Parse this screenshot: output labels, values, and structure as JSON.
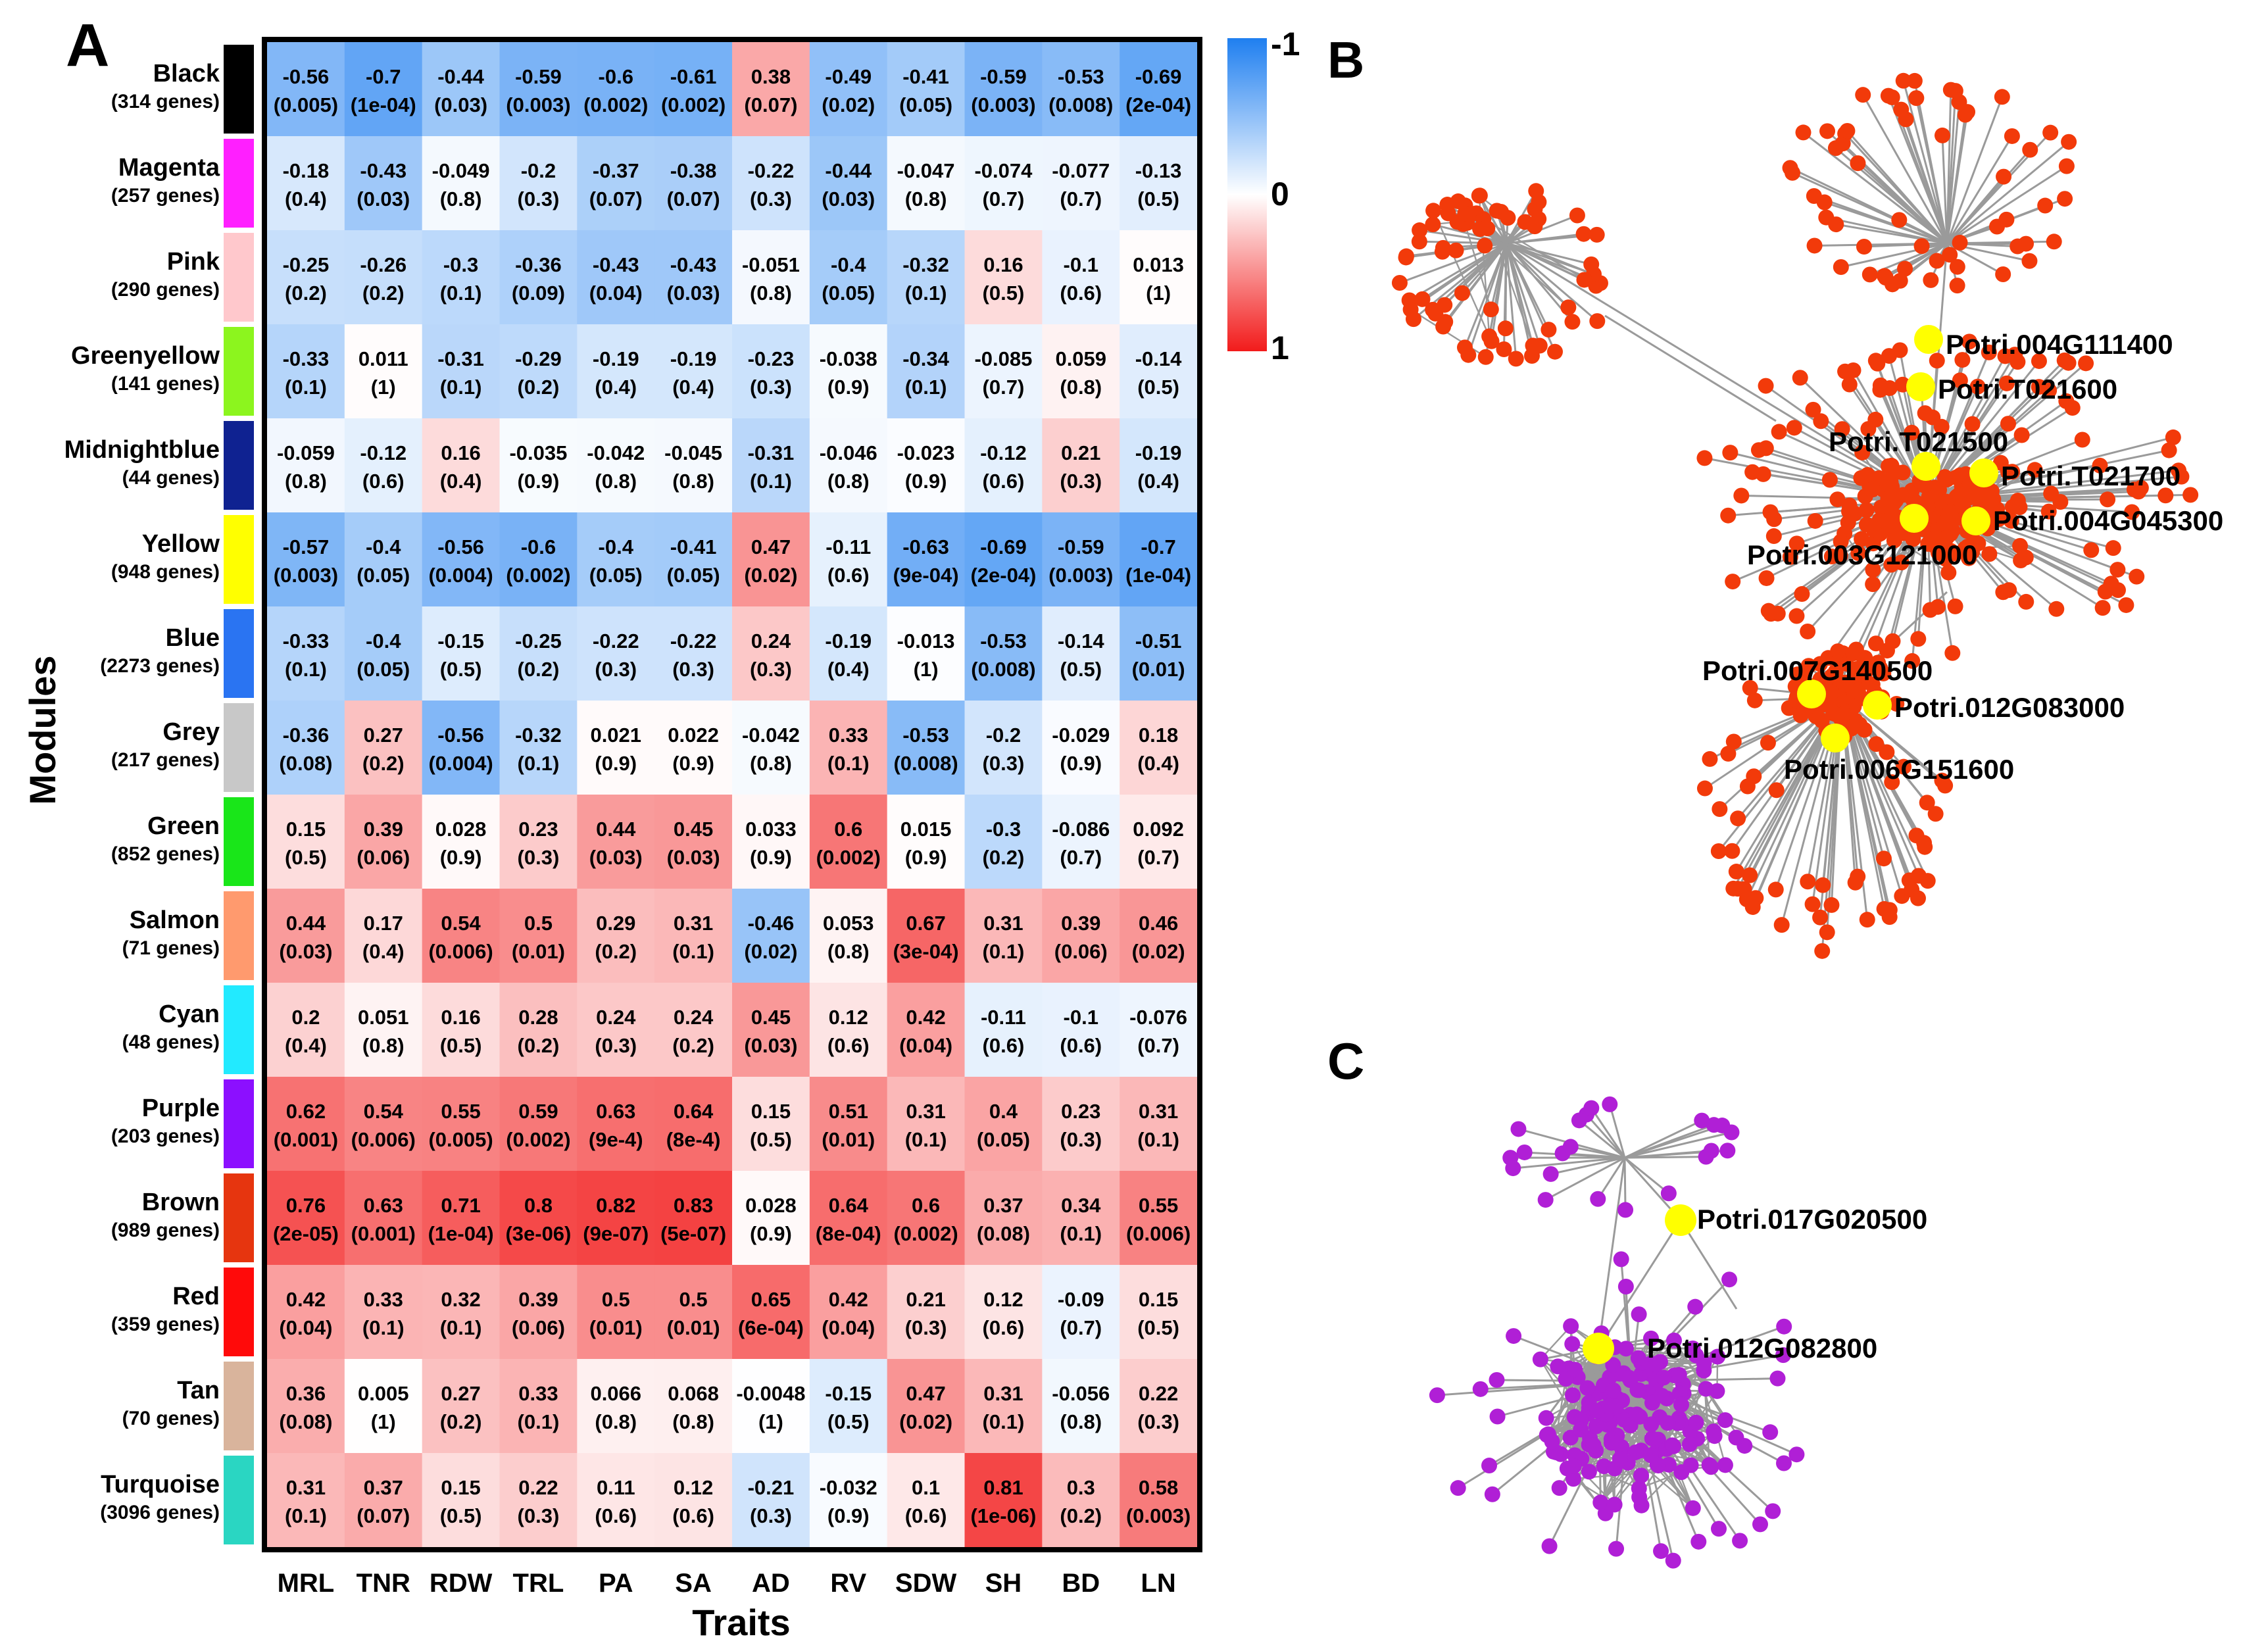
{
  "panels": {
    "a": {
      "letter": "A"
    },
    "b": {
      "letter": "B"
    },
    "c": {
      "letter": "C"
    }
  },
  "chart_data": {
    "type": "heatmap",
    "title": "",
    "xlabel": "Traits",
    "ylabel": "Modules",
    "traits": [
      "MRL",
      "TNR",
      "RDW",
      "TRL",
      "PA",
      "SA",
      "AD",
      "RV",
      "SDW",
      "SH",
      "BD",
      "LN"
    ],
    "colorbar": {
      "min": -1,
      "mid": 0,
      "max": 1,
      "min_label": "-1",
      "mid_label": "0",
      "max_label": "1",
      "low_color": "#1f7ff0",
      "mid_color": "#ffffff",
      "high_color": "#f21b1b"
    },
    "modules": [
      {
        "name": "Black",
        "genes": "(314 genes)",
        "color": "#000000",
        "r": [
          "-0.56",
          "-0.7",
          "-0.44",
          "-0.59",
          "-0.6",
          "-0.61",
          "0.38",
          "-0.49",
          "-0.41",
          "-0.59",
          "-0.53",
          "-0.69"
        ],
        "p": [
          "(0.005)",
          "(1e-04)",
          "(0.03)",
          "(0.003)",
          "(0.002)",
          "(0.002)",
          "(0.07)",
          "(0.02)",
          "(0.05)",
          "(0.003)",
          "(0.008)",
          "(2e-04)"
        ]
      },
      {
        "name": "Magenta",
        "genes": "(257 genes)",
        "color": "#ff1fff",
        "r": [
          "-0.18",
          "-0.43",
          "-0.049",
          "-0.2",
          "-0.37",
          "-0.38",
          "-0.22",
          "-0.44",
          "-0.047",
          "-0.074",
          "-0.077",
          "-0.13"
        ],
        "p": [
          "(0.4)",
          "(0.03)",
          "(0.8)",
          "(0.3)",
          "(0.07)",
          "(0.07)",
          "(0.3)",
          "(0.03)",
          "(0.8)",
          "(0.7)",
          "(0.7)",
          "(0.5)"
        ]
      },
      {
        "name": "Pink",
        "genes": "(290 genes)",
        "color": "#ffc8cc",
        "r": [
          "-0.25",
          "-0.26",
          "-0.3",
          "-0.36",
          "-0.43",
          "-0.43",
          "-0.051",
          "-0.4",
          "-0.32",
          "0.16",
          "-0.1",
          "0.013"
        ],
        "p": [
          "(0.2)",
          "(0.2)",
          "(0.1)",
          "(0.09)",
          "(0.04)",
          "(0.03)",
          "(0.8)",
          "(0.05)",
          "(0.1)",
          "(0.5)",
          "(0.6)",
          "(1)"
        ]
      },
      {
        "name": "Greenyellow",
        "genes": "(141 genes)",
        "color": "#8cf51e",
        "r": [
          "-0.33",
          "0.011",
          "-0.31",
          "-0.29",
          "-0.19",
          "-0.19",
          "-0.23",
          "-0.038",
          "-0.34",
          "-0.085",
          "0.059",
          "-0.14"
        ],
        "p": [
          "(0.1)",
          "(1)",
          "(0.1)",
          "(0.2)",
          "(0.4)",
          "(0.4)",
          "(0.3)",
          "(0.9)",
          "(0.1)",
          "(0.7)",
          "(0.8)",
          "(0.5)"
        ]
      },
      {
        "name": "Midnightblue",
        "genes": "(44 genes)",
        "color": "#0f2291",
        "r": [
          "-0.059",
          "-0.12",
          "0.16",
          "-0.035",
          "-0.042",
          "-0.045",
          "-0.31",
          "-0.046",
          "-0.023",
          "-0.12",
          "0.21",
          "-0.19"
        ],
        "p": [
          "(0.8)",
          "(0.6)",
          "(0.4)",
          "(0.9)",
          "(0.8)",
          "(0.8)",
          "(0.1)",
          "(0.8)",
          "(0.9)",
          "(0.6)",
          "(0.3)",
          "(0.4)"
        ]
      },
      {
        "name": "Yellow",
        "genes": "(948 genes)",
        "color": "#ffff00",
        "r": [
          "-0.57",
          "-0.4",
          "-0.56",
          "-0.6",
          "-0.4",
          "-0.41",
          "0.47",
          "-0.11",
          "-0.63",
          "-0.69",
          "-0.59",
          "-0.7"
        ],
        "p": [
          "(0.003)",
          "(0.05)",
          "(0.004)",
          "(0.002)",
          "(0.05)",
          "(0.05)",
          "(0.02)",
          "(0.6)",
          "(9e-04)",
          "(2e-04)",
          "(0.003)",
          "(1e-04)"
        ]
      },
      {
        "name": "Blue",
        "genes": "(2273 genes)",
        "color": "#2a74f2",
        "r": [
          "-0.33",
          "-0.4",
          "-0.15",
          "-0.25",
          "-0.22",
          "-0.22",
          "0.24",
          "-0.19",
          "-0.013",
          "-0.53",
          "-0.14",
          "-0.51"
        ],
        "p": [
          "(0.1)",
          "(0.05)",
          "(0.5)",
          "(0.2)",
          "(0.3)",
          "(0.3)",
          "(0.3)",
          "(0.4)",
          "(1)",
          "(0.008)",
          "(0.5)",
          "(0.01)"
        ]
      },
      {
        "name": "Grey",
        "genes": "(217 genes)",
        "color": "#c8c8c8",
        "r": [
          "-0.36",
          "0.27",
          "-0.56",
          "-0.32",
          "0.021",
          "0.022",
          "-0.042",
          "0.33",
          "-0.53",
          "-0.2",
          "-0.029",
          "0.18"
        ],
        "p": [
          "(0.08)",
          "(0.2)",
          "(0.004)",
          "(0.1)",
          "(0.9)",
          "(0.9)",
          "(0.8)",
          "(0.1)",
          "(0.008)",
          "(0.3)",
          "(0.9)",
          "(0.4)"
        ]
      },
      {
        "name": "Green",
        "genes": "(852 genes)",
        "color": "#19e619",
        "r": [
          "0.15",
          "0.39",
          "0.028",
          "0.23",
          "0.44",
          "0.45",
          "0.033",
          "0.6",
          "0.015",
          "-0.3",
          "-0.086",
          "0.092"
        ],
        "p": [
          "(0.5)",
          "(0.06)",
          "(0.9)",
          "(0.3)",
          "(0.03)",
          "(0.03)",
          "(0.9)",
          "(0.002)",
          "(0.9)",
          "(0.2)",
          "(0.7)",
          "(0.7)"
        ]
      },
      {
        "name": "Salmon",
        "genes": "(71 genes)",
        "color": "#ff9a6e",
        "r": [
          "0.44",
          "0.17",
          "0.54",
          "0.5",
          "0.29",
          "0.31",
          "-0.46",
          "0.053",
          "0.67",
          "0.31",
          "0.39",
          "0.46"
        ],
        "p": [
          "(0.03)",
          "(0.4)",
          "(0.006)",
          "(0.01)",
          "(0.2)",
          "(0.1)",
          "(0.02)",
          "(0.8)",
          "(3e-04)",
          "(0.1)",
          "(0.06)",
          "(0.02)"
        ]
      },
      {
        "name": "Cyan",
        "genes": "(48 genes)",
        "color": "#22eaff",
        "r": [
          "0.2",
          "0.051",
          "0.16",
          "0.28",
          "0.24",
          "0.24",
          "0.45",
          "0.12",
          "0.42",
          "-0.11",
          "-0.1",
          "-0.076"
        ],
        "p": [
          "(0.4)",
          "(0.8)",
          "(0.5)",
          "(0.2)",
          "(0.3)",
          "(0.2)",
          "(0.03)",
          "(0.6)",
          "(0.04)",
          "(0.6)",
          "(0.6)",
          "(0.7)"
        ]
      },
      {
        "name": "Purple",
        "genes": "(203 genes)",
        "color": "#8c0fff",
        "r": [
          "0.62",
          "0.54",
          "0.55",
          "0.59",
          "0.63",
          "0.64",
          "0.15",
          "0.51",
          "0.31",
          "0.4",
          "0.23",
          "0.31"
        ],
        "p": [
          "(0.001)",
          "(0.006)",
          "(0.005)",
          "(0.002)",
          "(9e-4)",
          "(8e-4)",
          "(0.5)",
          "(0.01)",
          "(0.1)",
          "(0.05)",
          "(0.3)",
          "(0.1)"
        ]
      },
      {
        "name": "Brown",
        "genes": "(989 genes)",
        "color": "#e6350f",
        "r": [
          "0.76",
          "0.63",
          "0.71",
          "0.8",
          "0.82",
          "0.83",
          "0.028",
          "0.64",
          "0.6",
          "0.37",
          "0.34",
          "0.55"
        ],
        "p": [
          "(2e-05)",
          "(0.001)",
          "(1e-04)",
          "(3e-06)",
          "(9e-07)",
          "(5e-07)",
          "(0.9)",
          "(8e-04)",
          "(0.002)",
          "(0.08)",
          "(0.1)",
          "(0.006)"
        ]
      },
      {
        "name": "Red",
        "genes": "(359 genes)",
        "color": "#ff0a0a",
        "r": [
          "0.42",
          "0.33",
          "0.32",
          "0.39",
          "0.5",
          "0.5",
          "0.65",
          "0.42",
          "0.21",
          "0.12",
          "-0.09",
          "0.15"
        ],
        "p": [
          "(0.04)",
          "(0.1)",
          "(0.1)",
          "(0.06)",
          "(0.01)",
          "(0.01)",
          "(6e-04)",
          "(0.04)",
          "(0.3)",
          "(0.6)",
          "(0.7)",
          "(0.5)"
        ]
      },
      {
        "name": "Tan",
        "genes": "(70 genes)",
        "color": "#d9b49c",
        "r": [
          "0.36",
          "0.005",
          "0.27",
          "0.33",
          "0.066",
          "0.068",
          "-0.0048",
          "-0.15",
          "0.47",
          "0.31",
          "-0.056",
          "0.22"
        ],
        "p": [
          "(0.08)",
          "(1)",
          "(0.2)",
          "(0.1)",
          "(0.8)",
          "(0.8)",
          "(1)",
          "(0.5)",
          "(0.02)",
          "(0.1)",
          "(0.8)",
          "(0.3)"
        ]
      },
      {
        "name": "Turquoise",
        "genes": "(3096 genes)",
        "color": "#2ad6c2",
        "r": [
          "0.31",
          "0.37",
          "0.15",
          "0.22",
          "0.11",
          "0.12",
          "-0.21",
          "-0.032",
          "0.1",
          "0.81",
          "0.3",
          "0.58"
        ],
        "p": [
          "(0.1)",
          "(0.07)",
          "(0.5)",
          "(0.3)",
          "(0.6)",
          "(0.6)",
          "(0.3)",
          "(0.9)",
          "(0.6)",
          "(1e-06)",
          "(0.2)",
          "(0.003)"
        ]
      }
    ]
  },
  "networks": {
    "b": {
      "node_color": "#f23a0a",
      "hub_color": "#ffff00",
      "edge_color": "#9a9a9a",
      "hubs": [
        "Potri.004G111400",
        "Potri.T021600",
        "Potri.T021500",
        "Potri.T021700",
        "Potri.004G045300",
        "Potri.003G121000",
        "Potri.007G140500",
        "Potri.012G083000",
        "Potri.006G151600"
      ]
    },
    "c": {
      "node_color": "#b01fd6",
      "hub_color": "#ffff00",
      "edge_color": "#9a9a9a",
      "hubs": [
        "Potri.017G020500",
        "Potri.012G082800"
      ]
    }
  }
}
